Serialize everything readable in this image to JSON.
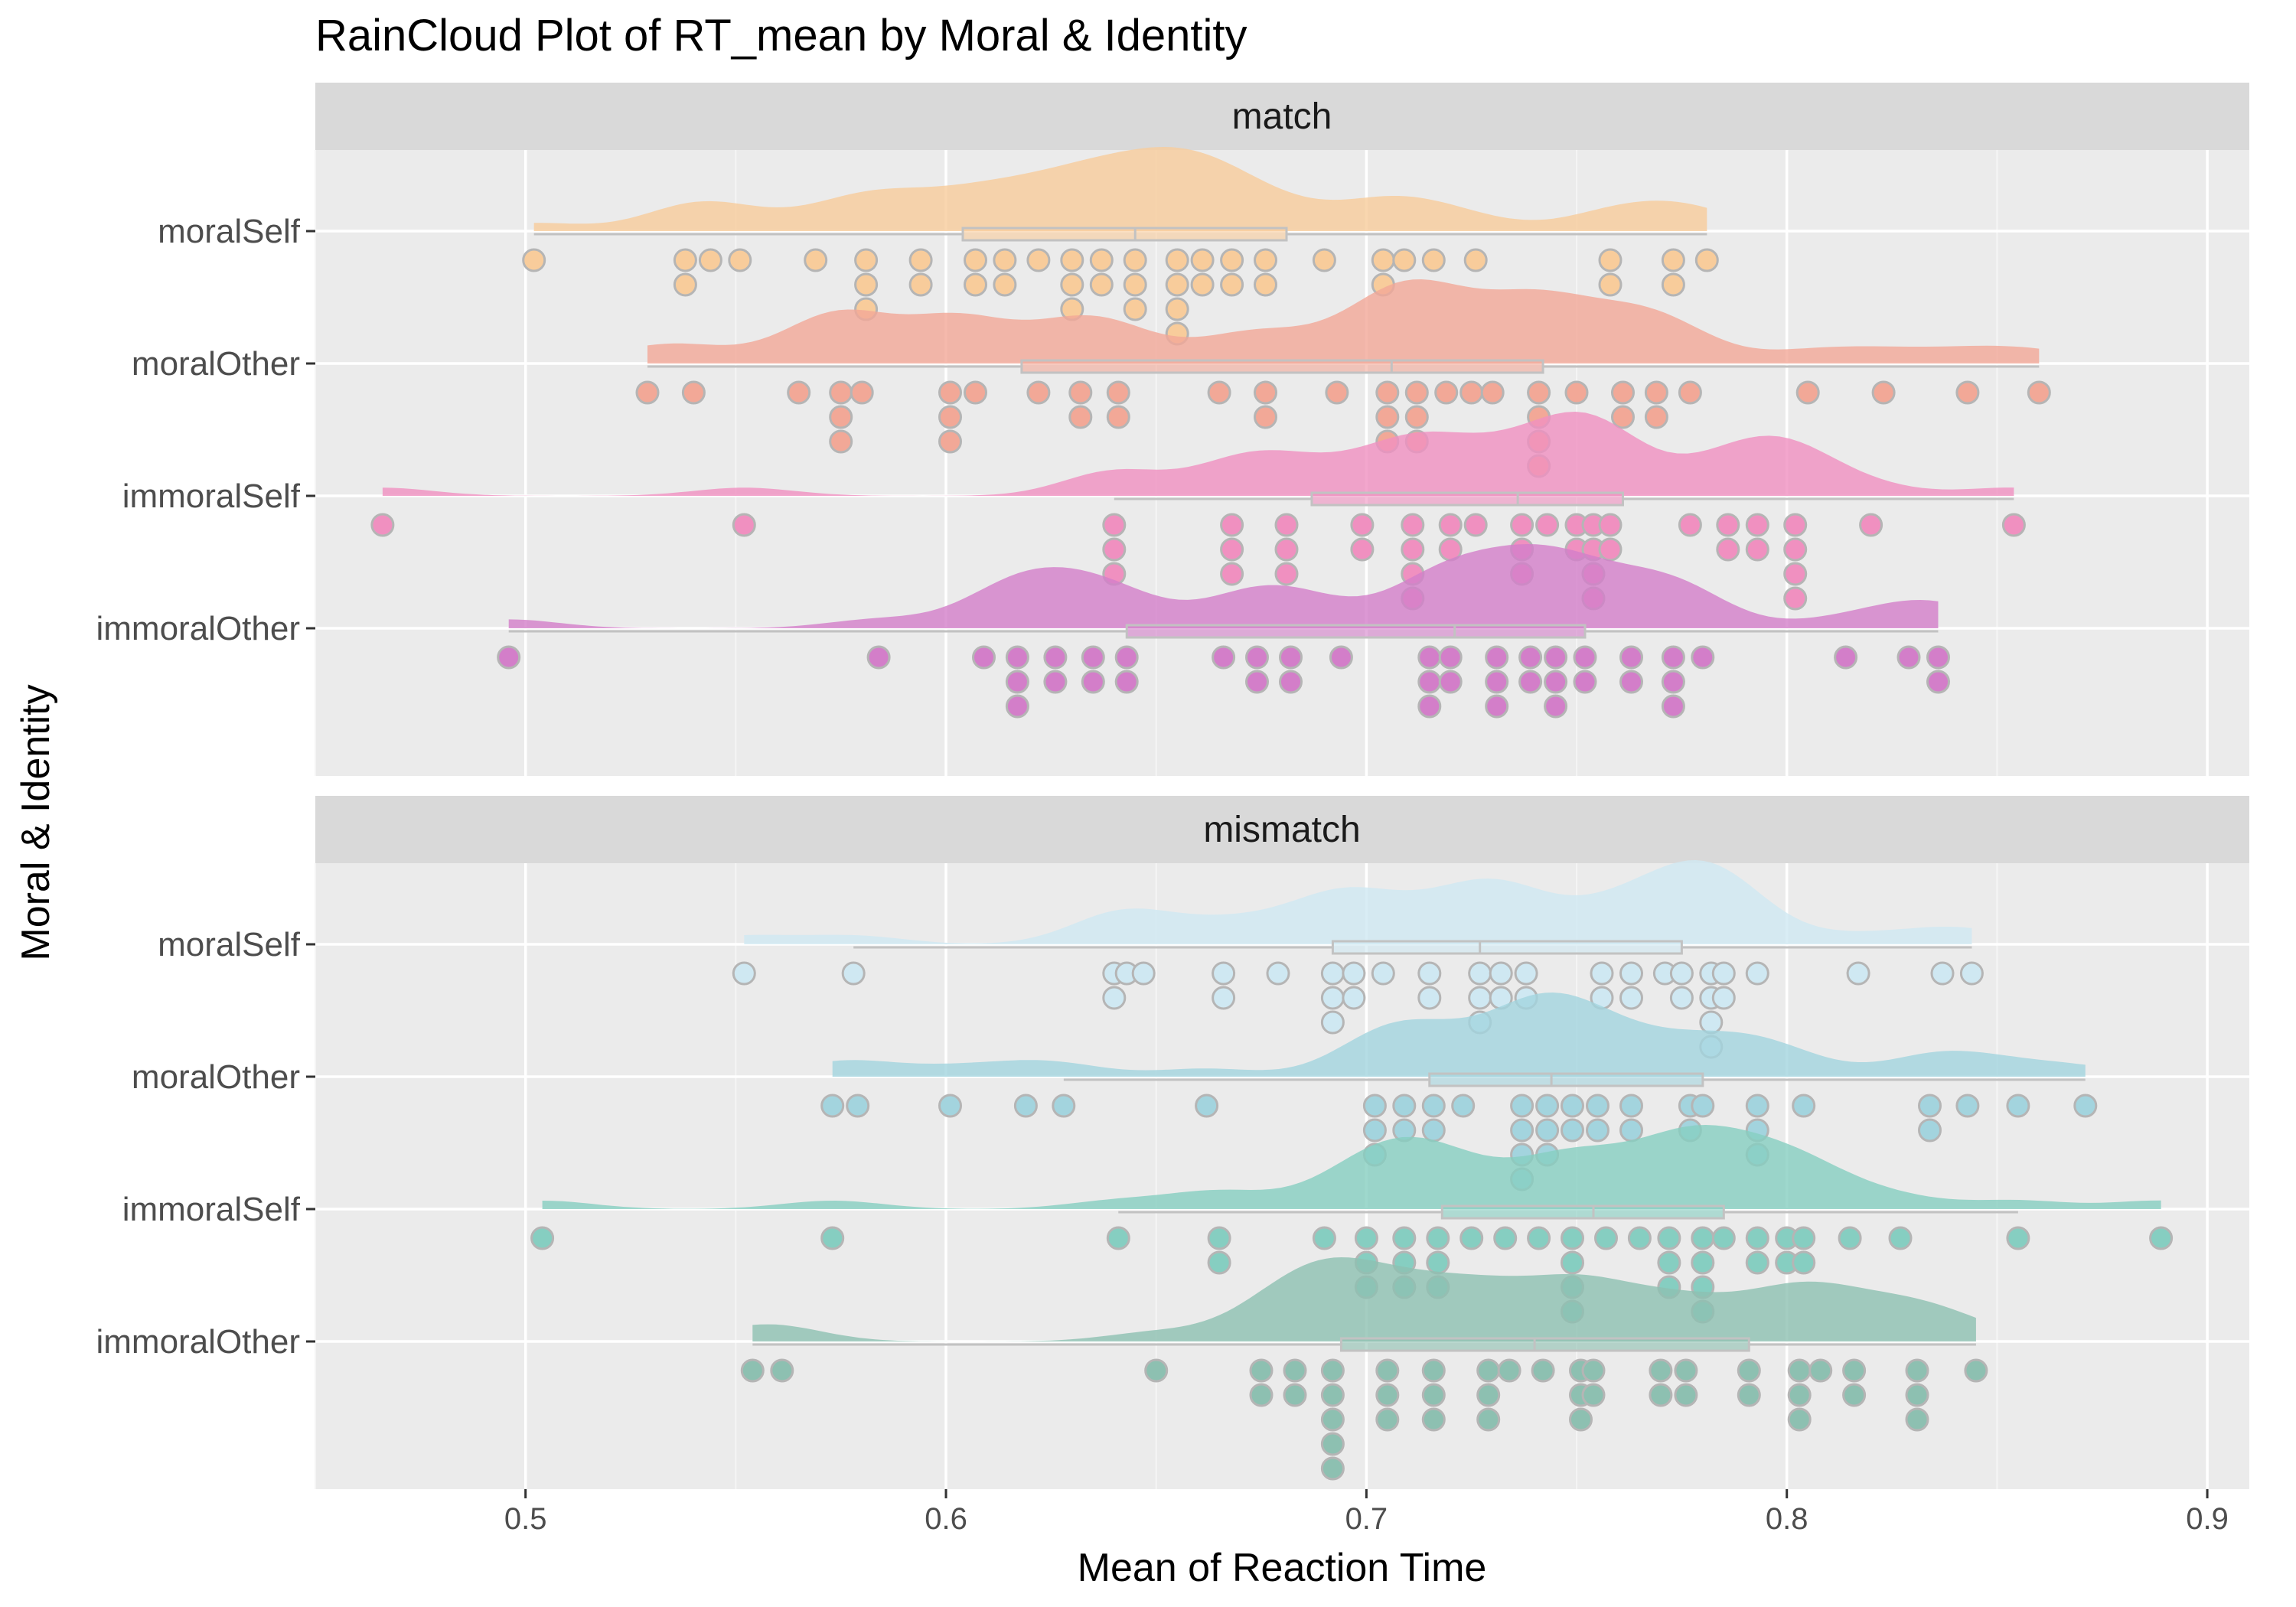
{
  "chart_data": {
    "type": "raincloud",
    "title": "RainCloud Plot of RT_mean by Moral & Identity",
    "xlabel": "Mean of Reaction Time",
    "ylabel": "Moral & Identity",
    "xlim": [
      0.45,
      0.91
    ],
    "xticks": [
      0.5,
      0.6,
      0.7,
      0.8,
      0.9
    ],
    "xtick_labels": [
      "0.5",
      "0.6",
      "0.7",
      "0.8",
      "0.9"
    ],
    "grid": true,
    "categories": [
      "moralSelf",
      "moralOther",
      "immoralSelf",
      "immoralOther"
    ],
    "panels": [
      {
        "label": "match",
        "groups": [
          {
            "category": "moralSelf",
            "color": "#F8CC9B",
            "box": {
              "min": 0.502,
              "q1": 0.604,
              "median": 0.645,
              "q3": 0.681,
              "max": 0.781
            },
            "values": [
              0.502,
              0.538,
              0.538,
              0.544,
              0.551,
              0.569,
              0.581,
              0.581,
              0.581,
              0.594,
              0.594,
              0.607,
              0.607,
              0.614,
              0.614,
              0.622,
              0.63,
              0.63,
              0.63,
              0.637,
              0.637,
              0.645,
              0.645,
              0.645,
              0.655,
              0.655,
              0.655,
              0.655,
              0.661,
              0.661,
              0.668,
              0.668,
              0.676,
              0.676,
              0.69,
              0.704,
              0.704,
              0.709,
              0.716,
              0.726,
              0.758,
              0.758,
              0.773,
              0.773,
              0.781
            ]
          },
          {
            "category": "moralOther",
            "color": "#F2A897",
            "box": {
              "min": 0.529,
              "q1": 0.618,
              "median": 0.706,
              "q3": 0.742,
              "max": 0.86
            },
            "values": [
              0.529,
              0.54,
              0.565,
              0.575,
              0.575,
              0.575,
              0.58,
              0.601,
              0.601,
              0.601,
              0.607,
              0.622,
              0.632,
              0.632,
              0.641,
              0.641,
              0.665,
              0.676,
              0.676,
              0.693,
              0.705,
              0.705,
              0.705,
              0.712,
              0.712,
              0.712,
              0.719,
              0.725,
              0.73,
              0.741,
              0.741,
              0.741,
              0.741,
              0.75,
              0.761,
              0.761,
              0.769,
              0.769,
              0.777,
              0.805,
              0.823,
              0.843,
              0.86
            ]
          },
          {
            "category": "immoralSelf",
            "color": "#F090C0",
            "box": {
              "min": 0.64,
              "q1": 0.687,
              "median": 0.736,
              "q3": 0.761,
              "max": 0.854
            },
            "values": [
              0.466,
              0.552,
              0.64,
              0.64,
              0.64,
              0.668,
              0.668,
              0.668,
              0.681,
              0.681,
              0.681,
              0.699,
              0.699,
              0.711,
              0.711,
              0.711,
              0.711,
              0.72,
              0.72,
              0.726,
              0.737,
              0.737,
              0.737,
              0.743,
              0.75,
              0.75,
              0.754,
              0.754,
              0.754,
              0.754,
              0.758,
              0.758,
              0.777,
              0.786,
              0.786,
              0.793,
              0.793,
              0.802,
              0.802,
              0.802,
              0.802,
              0.82,
              0.854
            ]
          },
          {
            "category": "immoralOther",
            "color": "#D37EC9",
            "box": {
              "min": 0.496,
              "q1": 0.643,
              "median": 0.721,
              "q3": 0.752,
              "max": 0.836
            },
            "values": [
              0.496,
              0.584,
              0.609,
              0.617,
              0.617,
              0.617,
              0.626,
              0.626,
              0.635,
              0.635,
              0.643,
              0.643,
              0.666,
              0.674,
              0.674,
              0.682,
              0.682,
              0.694,
              0.715,
              0.715,
              0.715,
              0.72,
              0.72,
              0.731,
              0.731,
              0.731,
              0.739,
              0.739,
              0.745,
              0.745,
              0.745,
              0.752,
              0.752,
              0.763,
              0.763,
              0.773,
              0.773,
              0.773,
              0.78,
              0.814,
              0.829,
              0.836,
              0.836
            ]
          }
        ]
      },
      {
        "label": "mismatch",
        "groups": [
          {
            "category": "moralSelf",
            "color": "#CFE8F2",
            "box": {
              "min": 0.578,
              "q1": 0.692,
              "median": 0.727,
              "q3": 0.775,
              "max": 0.844
            },
            "values": [
              0.552,
              0.578,
              0.64,
              0.64,
              0.643,
              0.647,
              0.666,
              0.666,
              0.679,
              0.692,
              0.692,
              0.692,
              0.697,
              0.697,
              0.704,
              0.715,
              0.715,
              0.727,
              0.727,
              0.727,
              0.732,
              0.732,
              0.738,
              0.738,
              0.756,
              0.756,
              0.763,
              0.763,
              0.771,
              0.775,
              0.775,
              0.782,
              0.782,
              0.782,
              0.782,
              0.785,
              0.785,
              0.793,
              0.817,
              0.837,
              0.844
            ]
          },
          {
            "category": "moralOther",
            "color": "#A3D4DE",
            "box": {
              "min": 0.628,
              "q1": 0.715,
              "median": 0.744,
              "q3": 0.78,
              "max": 0.871
            },
            "values": [
              0.573,
              0.579,
              0.601,
              0.619,
              0.628,
              0.662,
              0.702,
              0.702,
              0.702,
              0.709,
              0.709,
              0.716,
              0.716,
              0.723,
              0.737,
              0.737,
              0.737,
              0.737,
              0.743,
              0.743,
              0.743,
              0.749,
              0.749,
              0.755,
              0.755,
              0.763,
              0.763,
              0.777,
              0.777,
              0.78,
              0.793,
              0.793,
              0.793,
              0.804,
              0.834,
              0.834,
              0.843,
              0.855,
              0.871
            ]
          },
          {
            "category": "immoralSelf",
            "color": "#86CEC1",
            "box": {
              "min": 0.641,
              "q1": 0.718,
              "median": 0.754,
              "q3": 0.785,
              "max": 0.855
            },
            "values": [
              0.504,
              0.573,
              0.641,
              0.665,
              0.665,
              0.69,
              0.7,
              0.7,
              0.7,
              0.709,
              0.709,
              0.709,
              0.717,
              0.717,
              0.717,
              0.725,
              0.733,
              0.741,
              0.749,
              0.749,
              0.749,
              0.749,
              0.757,
              0.765,
              0.772,
              0.772,
              0.772,
              0.78,
              0.78,
              0.78,
              0.78,
              0.785,
              0.793,
              0.793,
              0.8,
              0.8,
              0.804,
              0.804,
              0.815,
              0.827,
              0.855,
              0.889
            ]
          },
          {
            "category": "immoralOther",
            "color": "#8DC0B1",
            "box": {
              "min": 0.554,
              "q1": 0.694,
              "median": 0.74,
              "q3": 0.791,
              "max": 0.845
            },
            "values": [
              0.554,
              0.561,
              0.65,
              0.675,
              0.675,
              0.683,
              0.683,
              0.692,
              0.692,
              0.692,
              0.692,
              0.692,
              0.705,
              0.705,
              0.705,
              0.716,
              0.716,
              0.716,
              0.729,
              0.729,
              0.729,
              0.734,
              0.742,
              0.751,
              0.751,
              0.751,
              0.754,
              0.754,
              0.77,
              0.77,
              0.776,
              0.776,
              0.791,
              0.791,
              0.803,
              0.803,
              0.803,
              0.808,
              0.816,
              0.816,
              0.831,
              0.831,
              0.831,
              0.845
            ]
          }
        ]
      }
    ]
  }
}
